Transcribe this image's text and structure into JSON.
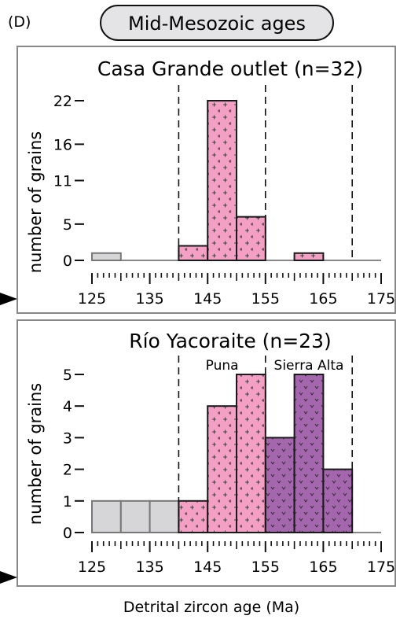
{
  "figure": {
    "panel_label": "(D)",
    "header": "Mid-Mesozoic ages",
    "xlabel": "Detrital zircon age (Ma)",
    "colors": {
      "gray": "#d6d6d8",
      "pink": "#f4a0c4",
      "purple": "#a466ad",
      "frame": "#888888",
      "bar_edge": "#1a1a1a"
    }
  },
  "chart_data": [
    {
      "type": "bar",
      "title": "Casa Grande outlet (n=32)",
      "ylabel": "number of grains",
      "xlabel": "",
      "bin_width": 5,
      "xlim": [
        125,
        175
      ],
      "ylim": [
        0,
        22
      ],
      "xticks": [
        125,
        135,
        145,
        155,
        165,
        175
      ],
      "yticks": [
        {
          "value": 0,
          "label": "0"
        },
        {
          "value": 5,
          "label": "5"
        },
        {
          "value": 11,
          "label": "11"
        },
        {
          "value": 16,
          "label": "16"
        },
        {
          "value": 22,
          "label": "22"
        }
      ],
      "dashed_lines": [
        140,
        155,
        170
      ],
      "bins": [
        {
          "start": 125,
          "value": 1,
          "group": "gray"
        },
        {
          "start": 130,
          "value": 0,
          "group": "none"
        },
        {
          "start": 135,
          "value": 0,
          "group": "none"
        },
        {
          "start": 140,
          "value": 2,
          "group": "pink"
        },
        {
          "start": 145,
          "value": 22,
          "group": "pink"
        },
        {
          "start": 150,
          "value": 6,
          "group": "pink"
        },
        {
          "start": 155,
          "value": 0,
          "group": "none"
        },
        {
          "start": 160,
          "value": 1,
          "group": "pink"
        },
        {
          "start": 165,
          "value": 0,
          "group": "none"
        },
        {
          "start": 170,
          "value": 0,
          "group": "none"
        }
      ],
      "region_labels": []
    },
    {
      "type": "bar",
      "title": "Río Yacoraite (n=23)",
      "ylabel": "number of grains",
      "xlabel": "Detrital zircon age (Ma)",
      "bin_width": 5,
      "xlim": [
        125,
        175
      ],
      "ylim": [
        0,
        5
      ],
      "xticks": [
        125,
        135,
        145,
        155,
        165,
        175
      ],
      "yticks": [
        {
          "value": 0,
          "label": "0"
        },
        {
          "value": 1,
          "label": "1"
        },
        {
          "value": 2,
          "label": "2"
        },
        {
          "value": 3,
          "label": "3"
        },
        {
          "value": 4,
          "label": "4"
        },
        {
          "value": 5,
          "label": "5"
        }
      ],
      "dashed_lines": [
        140,
        155,
        170
      ],
      "bins": [
        {
          "start": 125,
          "value": 1,
          "group": "gray"
        },
        {
          "start": 130,
          "value": 1,
          "group": "gray"
        },
        {
          "start": 135,
          "value": 1,
          "group": "gray"
        },
        {
          "start": 140,
          "value": 1,
          "group": "pink"
        },
        {
          "start": 145,
          "value": 4,
          "group": "pink"
        },
        {
          "start": 150,
          "value": 5,
          "group": "pink"
        },
        {
          "start": 155,
          "value": 3,
          "group": "purple"
        },
        {
          "start": 160,
          "value": 5,
          "group": "purple"
        },
        {
          "start": 165,
          "value": 2,
          "group": "purple"
        },
        {
          "start": 170,
          "value": 0,
          "group": "none"
        }
      ],
      "region_labels": [
        {
          "text": "Puna",
          "x": 147.5
        },
        {
          "text": "Sierra Alta",
          "x": 162.5
        }
      ]
    }
  ]
}
